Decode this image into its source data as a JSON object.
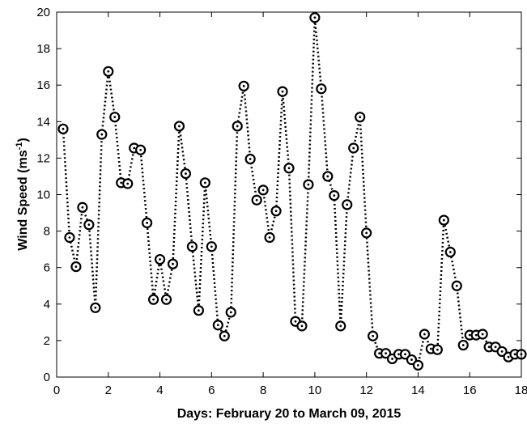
{
  "chart_data": {
    "type": "line",
    "title": "",
    "xlabel": "Days: February 20 to March 09, 2015",
    "ylabel": {
      "main": "Wind Speed (ms",
      "superscript": "-1",
      "close": ")"
    },
    "xlim": [
      0,
      18
    ],
    "ylim": [
      0,
      20
    ],
    "xticks": [
      "0",
      "2",
      "4",
      "6",
      "8",
      "10",
      "12",
      "14",
      "16",
      "18"
    ],
    "yticks": [
      "0",
      "2",
      "4",
      "6",
      "8",
      "10",
      "12",
      "14",
      "16",
      "18",
      "20"
    ],
    "grid": false,
    "line_style": "dotted",
    "marker": "circle-with-dot",
    "color": "#000000",
    "series": [
      {
        "x": [
          0.25,
          0.5,
          0.75,
          1.0,
          1.25,
          1.5,
          1.75,
          2.0,
          2.25,
          2.5,
          2.75,
          3.0,
          3.25,
          3.5,
          3.75,
          4.0,
          4.25,
          4.5,
          4.75,
          5.0,
          5.25,
          5.5,
          5.75,
          6.0,
          6.25,
          6.5,
          6.75,
          7.0,
          7.25,
          7.5,
          7.75,
          8.0,
          8.25,
          8.5,
          8.75,
          9.0,
          9.25,
          9.5,
          9.75,
          10.0,
          10.25,
          10.5,
          10.75,
          11.0,
          11.25,
          11.5,
          11.75,
          12.0,
          12.25,
          12.5,
          12.75,
          13.0,
          13.25,
          13.5,
          13.75,
          14.0,
          14.25,
          14.5,
          14.75,
          15.0,
          15.25,
          15.5,
          15.75,
          16.0,
          16.25,
          16.5,
          16.75,
          17.0,
          17.25,
          17.5,
          17.75,
          18.0
        ],
        "values": [
          13.6,
          7.65,
          6.05,
          9.3,
          8.35,
          3.8,
          13.3,
          16.75,
          14.25,
          10.65,
          10.6,
          12.55,
          12.45,
          8.45,
          4.25,
          6.45,
          4.25,
          6.2,
          13.75,
          11.15,
          7.15,
          3.65,
          10.65,
          7.15,
          2.85,
          2.25,
          3.55,
          13.75,
          15.95,
          11.95,
          9.7,
          10.25,
          7.65,
          9.1,
          15.65,
          11.45,
          3.05,
          2.8,
          10.55,
          19.7,
          15.8,
          11.0,
          9.95,
          2.8,
          9.45,
          12.55,
          14.25,
          7.9,
          2.25,
          1.3,
          1.3,
          1.0,
          1.25,
          1.25,
          0.95,
          0.65,
          2.35,
          1.55,
          1.5,
          8.6,
          6.85,
          5.0,
          1.75,
          2.3,
          2.3,
          2.35,
          1.65,
          1.65,
          1.4,
          1.1,
          1.25,
          1.25
        ]
      }
    ]
  }
}
